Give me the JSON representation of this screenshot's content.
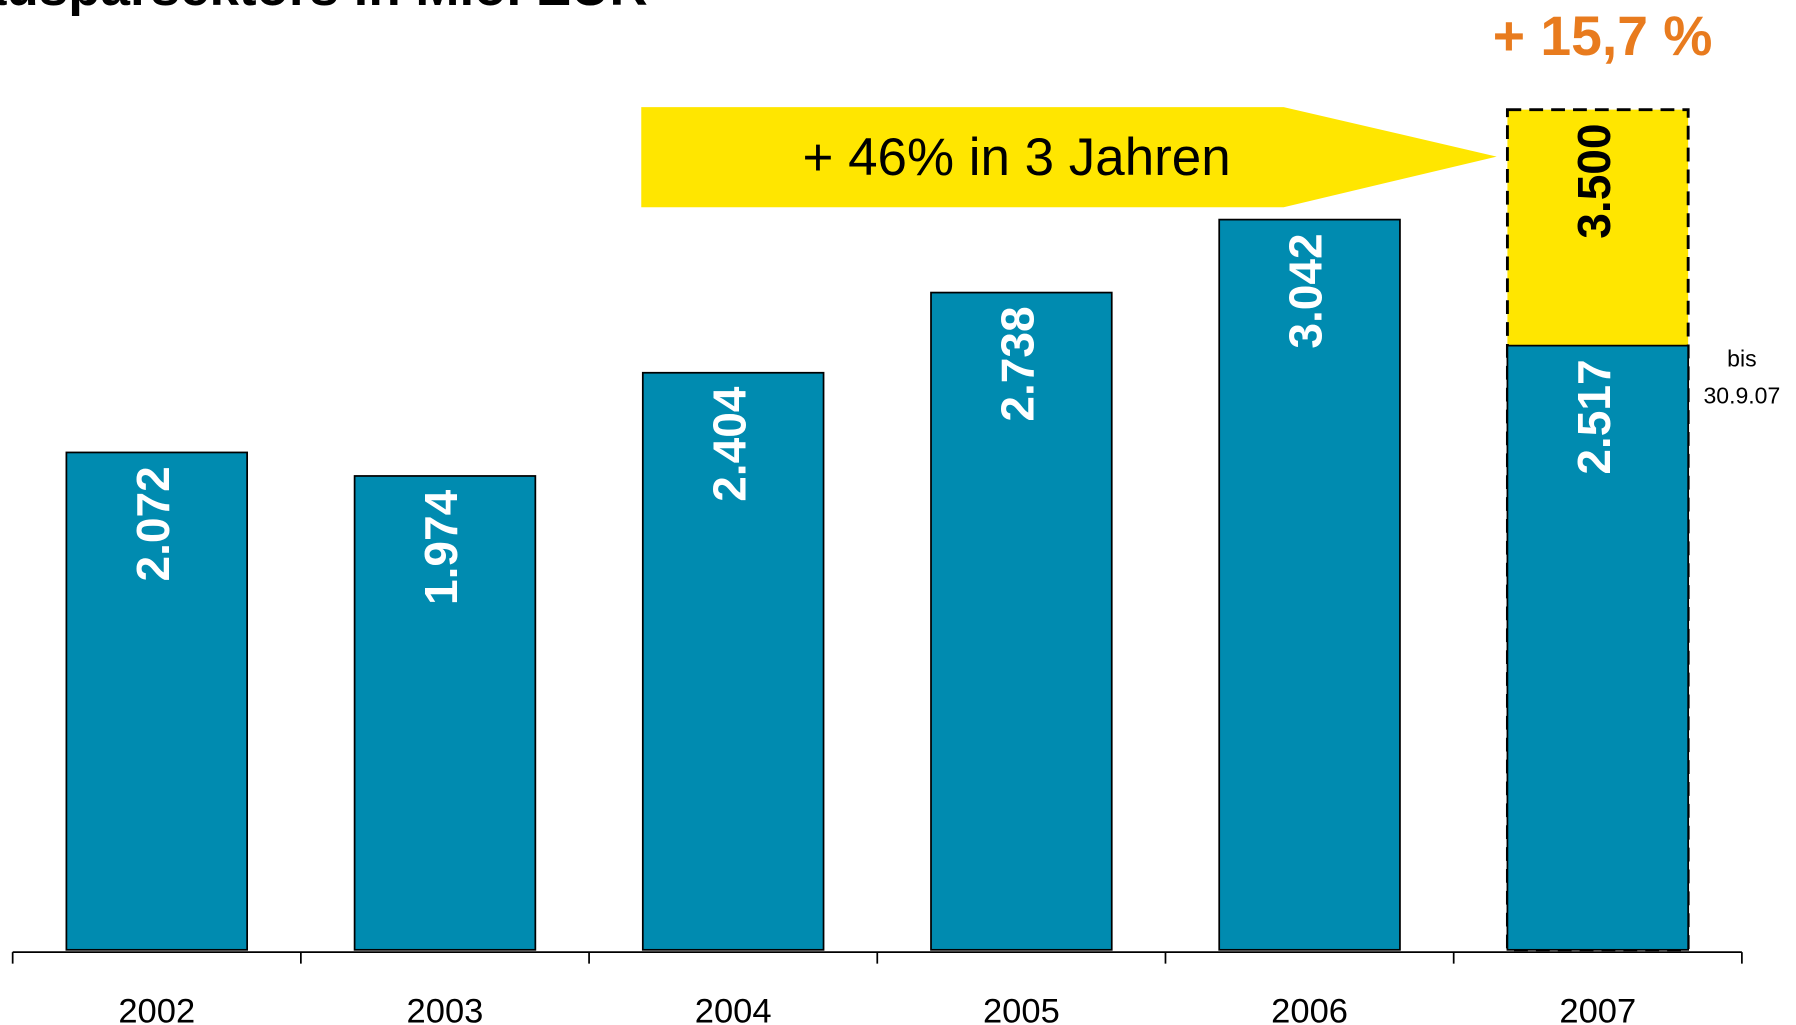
{
  "chart_data": {
    "type": "bar",
    "title": "ausparsektors in Mio. EUR",
    "categories": [
      "2002",
      "2003",
      "2004",
      "2005",
      "2006",
      "2007"
    ],
    "series": [
      {
        "color": "#008bb0",
        "values": [
          2072,
          1974,
          2404,
          2738,
          3042,
          2517
        ],
        "value_labels": [
          "2.072",
          "1.974",
          "2.404",
          "2.738",
          "3.042",
          "2.517"
        ]
      },
      {
        "color": "#ffe600",
        "values": [
          null,
          null,
          null,
          null,
          null,
          3500
        ],
        "value_labels": [
          null,
          null,
          null,
          null,
          null,
          "3.500"
        ]
      }
    ],
    "ylim": [
      0,
      4000
    ],
    "growth_arrow": "+ 46% in 3 Jahren",
    "growth_label": "+ 15,7 %",
    "growth_label_color": "#e87b1e",
    "note": [
      "bis",
      "30.9.07"
    ]
  }
}
